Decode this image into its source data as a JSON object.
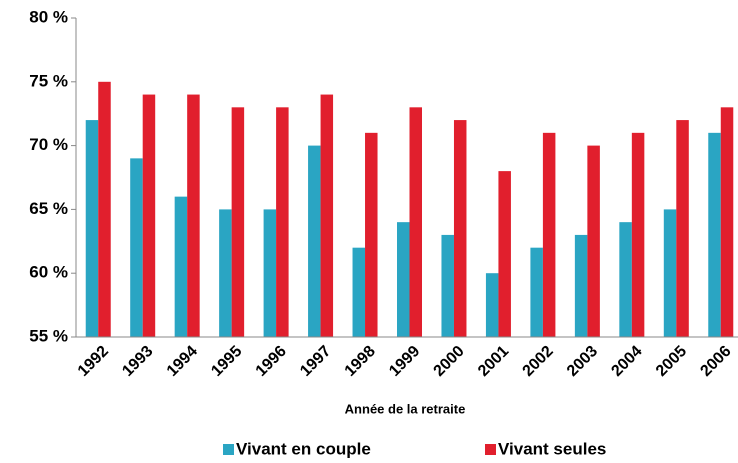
{
  "chart_data": {
    "type": "bar",
    "x_label": "Année de la retraite",
    "categories": [
      "1992",
      "1993",
      "1994",
      "1995",
      "1996",
      "1997",
      "1998",
      "1999",
      "2000",
      "2001",
      "2002",
      "2003",
      "2004",
      "2005",
      "2006"
    ],
    "series": [
      {
        "name": "Vivant en couple",
        "color": "#2aa5c3",
        "values": [
          72,
          69,
          66,
          65,
          65,
          70,
          62,
          64,
          63,
          60,
          62,
          63,
          64,
          65,
          71
        ]
      },
      {
        "name": "Vivant seules",
        "color": "#e11f2d",
        "values": [
          75,
          74,
          74,
          73,
          73,
          74,
          71,
          73,
          72,
          68,
          71,
          70,
          71,
          72,
          73
        ]
      }
    ],
    "ylim": [
      55,
      80
    ],
    "yticks": [
      {
        "value": 55,
        "label": "55 %"
      },
      {
        "value": 60,
        "label": "60 %"
      },
      {
        "value": 65,
        "label": "65 %"
      },
      {
        "value": 70,
        "label": "70 %"
      },
      {
        "value": 75,
        "label": "75 %"
      },
      {
        "value": 80,
        "label": "80 %"
      }
    ],
    "legend": "bottom"
  }
}
